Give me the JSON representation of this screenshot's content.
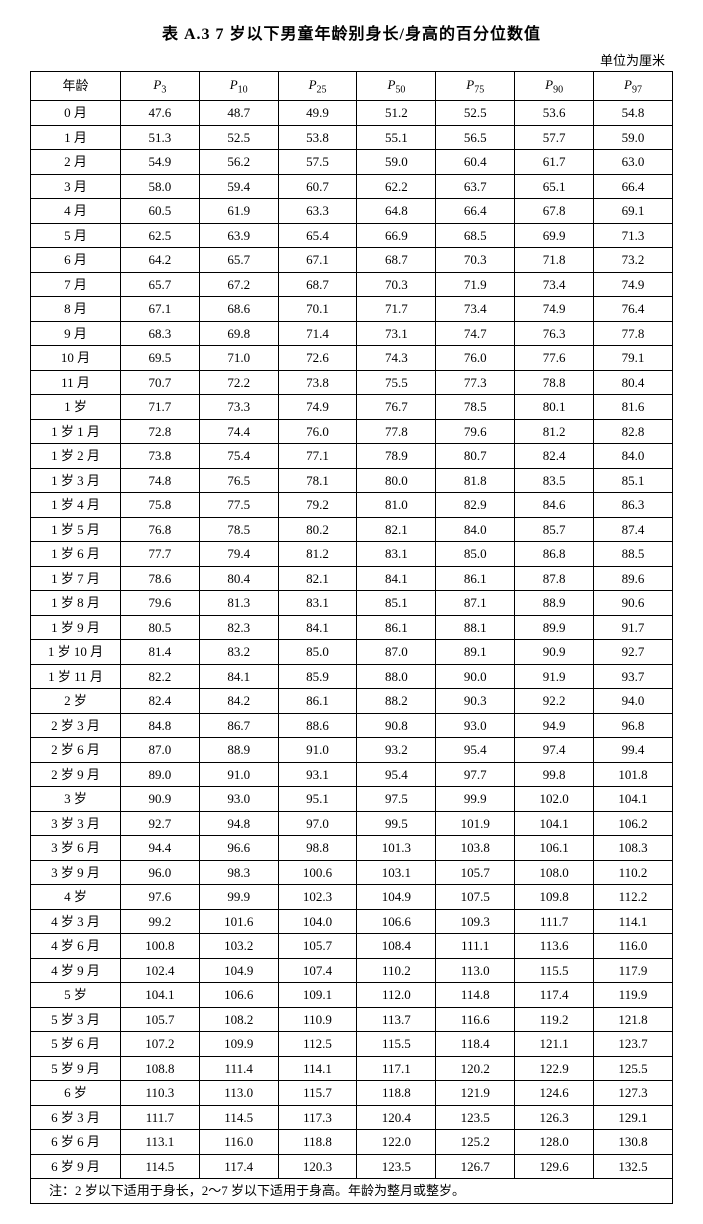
{
  "title": "表 A.3  7 岁以下男童年龄别身长/身高的百分位数值",
  "unit": "单位为厘米",
  "note": "注：2 岁以下适用于身长，2～7 岁以下适用于身高。年龄为整月或整岁。",
  "columns": {
    "age": "年龄",
    "p3": "3",
    "p10": "10",
    "p25": "25",
    "p50": "50",
    "p75": "75",
    "p90": "90",
    "p97": "97"
  },
  "rows": [
    {
      "age": "0 月",
      "v": [
        "47.6",
        "48.7",
        "49.9",
        "51.2",
        "52.5",
        "53.6",
        "54.8"
      ]
    },
    {
      "age": "1 月",
      "v": [
        "51.3",
        "52.5",
        "53.8",
        "55.1",
        "56.5",
        "57.7",
        "59.0"
      ]
    },
    {
      "age": "2 月",
      "v": [
        "54.9",
        "56.2",
        "57.5",
        "59.0",
        "60.4",
        "61.7",
        "63.0"
      ]
    },
    {
      "age": "3 月",
      "v": [
        "58.0",
        "59.4",
        "60.7",
        "62.2",
        "63.7",
        "65.1",
        "66.4"
      ]
    },
    {
      "age": "4 月",
      "v": [
        "60.5",
        "61.9",
        "63.3",
        "64.8",
        "66.4",
        "67.8",
        "69.1"
      ]
    },
    {
      "age": "5 月",
      "v": [
        "62.5",
        "63.9",
        "65.4",
        "66.9",
        "68.5",
        "69.9",
        "71.3"
      ]
    },
    {
      "age": "6 月",
      "v": [
        "64.2",
        "65.7",
        "67.1",
        "68.7",
        "70.3",
        "71.8",
        "73.2"
      ]
    },
    {
      "age": "7 月",
      "v": [
        "65.7",
        "67.2",
        "68.7",
        "70.3",
        "71.9",
        "73.4",
        "74.9"
      ]
    },
    {
      "age": "8 月",
      "v": [
        "67.1",
        "68.6",
        "70.1",
        "71.7",
        "73.4",
        "74.9",
        "76.4"
      ]
    },
    {
      "age": "9 月",
      "v": [
        "68.3",
        "69.8",
        "71.4",
        "73.1",
        "74.7",
        "76.3",
        "77.8"
      ]
    },
    {
      "age": "10 月",
      "v": [
        "69.5",
        "71.0",
        "72.6",
        "74.3",
        "76.0",
        "77.6",
        "79.1"
      ]
    },
    {
      "age": "11 月",
      "v": [
        "70.7",
        "72.2",
        "73.8",
        "75.5",
        "77.3",
        "78.8",
        "80.4"
      ]
    },
    {
      "age": "1 岁",
      "v": [
        "71.7",
        "73.3",
        "74.9",
        "76.7",
        "78.5",
        "80.1",
        "81.6"
      ]
    },
    {
      "age": "1 岁 1 月",
      "v": [
        "72.8",
        "74.4",
        "76.0",
        "77.8",
        "79.6",
        "81.2",
        "82.8"
      ]
    },
    {
      "age": "1 岁 2 月",
      "v": [
        "73.8",
        "75.4",
        "77.1",
        "78.9",
        "80.7",
        "82.4",
        "84.0"
      ]
    },
    {
      "age": "1 岁 3 月",
      "v": [
        "74.8",
        "76.5",
        "78.1",
        "80.0",
        "81.8",
        "83.5",
        "85.1"
      ]
    },
    {
      "age": "1 岁 4 月",
      "v": [
        "75.8",
        "77.5",
        "79.2",
        "81.0",
        "82.9",
        "84.6",
        "86.3"
      ]
    },
    {
      "age": "1 岁 5 月",
      "v": [
        "76.8",
        "78.5",
        "80.2",
        "82.1",
        "84.0",
        "85.7",
        "87.4"
      ]
    },
    {
      "age": "1 岁 6 月",
      "v": [
        "77.7",
        "79.4",
        "81.2",
        "83.1",
        "85.0",
        "86.8",
        "88.5"
      ]
    },
    {
      "age": "1 岁 7 月",
      "v": [
        "78.6",
        "80.4",
        "82.1",
        "84.1",
        "86.1",
        "87.8",
        "89.6"
      ]
    },
    {
      "age": "1 岁 8 月",
      "v": [
        "79.6",
        "81.3",
        "83.1",
        "85.1",
        "87.1",
        "88.9",
        "90.6"
      ]
    },
    {
      "age": "1 岁 9 月",
      "v": [
        "80.5",
        "82.3",
        "84.1",
        "86.1",
        "88.1",
        "89.9",
        "91.7"
      ]
    },
    {
      "age": "1 岁 10 月",
      "v": [
        "81.4",
        "83.2",
        "85.0",
        "87.0",
        "89.1",
        "90.9",
        "92.7"
      ]
    },
    {
      "age": "1 岁 11 月",
      "v": [
        "82.2",
        "84.1",
        "85.9",
        "88.0",
        "90.0",
        "91.9",
        "93.7"
      ]
    },
    {
      "age": "2 岁",
      "v": [
        "82.4",
        "84.2",
        "86.1",
        "88.2",
        "90.3",
        "92.2",
        "94.0"
      ]
    },
    {
      "age": "2 岁 3 月",
      "v": [
        "84.8",
        "86.7",
        "88.6",
        "90.8",
        "93.0",
        "94.9",
        "96.8"
      ]
    },
    {
      "age": "2 岁 6 月",
      "v": [
        "87.0",
        "88.9",
        "91.0",
        "93.2",
        "95.4",
        "97.4",
        "99.4"
      ]
    },
    {
      "age": "2 岁 9 月",
      "v": [
        "89.0",
        "91.0",
        "93.1",
        "95.4",
        "97.7",
        "99.8",
        "101.8"
      ]
    },
    {
      "age": "3 岁",
      "v": [
        "90.9",
        "93.0",
        "95.1",
        "97.5",
        "99.9",
        "102.0",
        "104.1"
      ]
    },
    {
      "age": "3 岁 3 月",
      "v": [
        "92.7",
        "94.8",
        "97.0",
        "99.5",
        "101.9",
        "104.1",
        "106.2"
      ]
    },
    {
      "age": "3 岁 6 月",
      "v": [
        "94.4",
        "96.6",
        "98.8",
        "101.3",
        "103.8",
        "106.1",
        "108.3"
      ]
    },
    {
      "age": "3 岁 9 月",
      "v": [
        "96.0",
        "98.3",
        "100.6",
        "103.1",
        "105.7",
        "108.0",
        "110.2"
      ]
    },
    {
      "age": "4 岁",
      "v": [
        "97.6",
        "99.9",
        "102.3",
        "104.9",
        "107.5",
        "109.8",
        "112.2"
      ]
    },
    {
      "age": "4 岁 3 月",
      "v": [
        "99.2",
        "101.6",
        "104.0",
        "106.6",
        "109.3",
        "111.7",
        "114.1"
      ]
    },
    {
      "age": "4 岁 6 月",
      "v": [
        "100.8",
        "103.2",
        "105.7",
        "108.4",
        "111.1",
        "113.6",
        "116.0"
      ]
    },
    {
      "age": "4 岁 9 月",
      "v": [
        "102.4",
        "104.9",
        "107.4",
        "110.2",
        "113.0",
        "115.5",
        "117.9"
      ]
    },
    {
      "age": "5 岁",
      "v": [
        "104.1",
        "106.6",
        "109.1",
        "112.0",
        "114.8",
        "117.4",
        "119.9"
      ]
    },
    {
      "age": "5 岁 3 月",
      "v": [
        "105.7",
        "108.2",
        "110.9",
        "113.7",
        "116.6",
        "119.2",
        "121.8"
      ]
    },
    {
      "age": "5 岁 6 月",
      "v": [
        "107.2",
        "109.9",
        "112.5",
        "115.5",
        "118.4",
        "121.1",
        "123.7"
      ]
    },
    {
      "age": "5 岁 9 月",
      "v": [
        "108.8",
        "111.4",
        "114.1",
        "117.1",
        "120.2",
        "122.9",
        "125.5"
      ]
    },
    {
      "age": "6 岁",
      "v": [
        "110.3",
        "113.0",
        "115.7",
        "118.8",
        "121.9",
        "124.6",
        "127.3"
      ]
    },
    {
      "age": "6 岁 3 月",
      "v": [
        "111.7",
        "114.5",
        "117.3",
        "120.4",
        "123.5",
        "126.3",
        "129.1"
      ]
    },
    {
      "age": "6 岁 6 月",
      "v": [
        "113.1",
        "116.0",
        "118.8",
        "122.0",
        "125.2",
        "128.0",
        "130.8"
      ]
    },
    {
      "age": "6 岁 9 月",
      "v": [
        "114.5",
        "117.4",
        "120.3",
        "123.5",
        "126.7",
        "129.6",
        "132.5"
      ]
    }
  ]
}
